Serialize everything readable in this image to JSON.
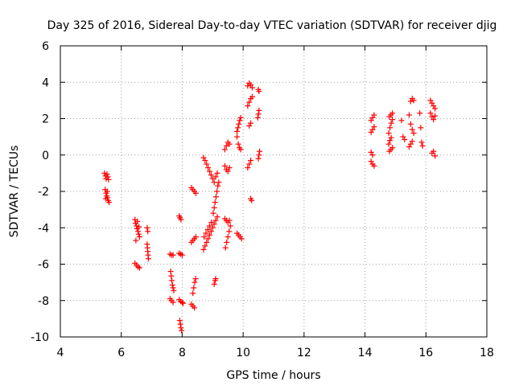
{
  "chart_data": {
    "type": "scatter",
    "title": "Day 325 of 2016, Sidereal Day-to-day VTEC variation (SDTVAR) for receiver djig",
    "xlabel": "GPS time / hours",
    "ylabel": "SDTVAR / TECUs",
    "xlim": [
      4,
      18
    ],
    "ylim": [
      -10,
      6
    ],
    "xticks": [
      "4",
      "6",
      "8",
      "10",
      "12",
      "14",
      "16",
      "18"
    ],
    "yticks": [
      "-10",
      "-8",
      "-6",
      "-4",
      "-2",
      "0",
      "2",
      "4",
      "6"
    ],
    "grid": true,
    "marker": "plus",
    "series": [
      {
        "name": "SDTVAR",
        "color": "#ff0000",
        "points": [
          [
            5.45,
            -1.0
          ],
          [
            5.48,
            -1.15
          ],
          [
            5.5,
            -1.3
          ],
          [
            5.53,
            -1.05
          ],
          [
            5.56,
            -1.2
          ],
          [
            5.58,
            -1.35
          ],
          [
            5.47,
            -1.9
          ],
          [
            5.5,
            -2.1
          ],
          [
            5.52,
            -2.25
          ],
          [
            5.55,
            -2.35
          ],
          [
            5.57,
            -2.5
          ],
          [
            5.6,
            -2.6
          ],
          [
            5.49,
            -2.4
          ],
          [
            5.54,
            -2.0
          ],
          [
            6.45,
            -3.55
          ],
          [
            6.47,
            -3.75
          ],
          [
            6.5,
            -3.9
          ],
          [
            6.52,
            -4.05
          ],
          [
            6.55,
            -4.2
          ],
          [
            6.57,
            -4.35
          ],
          [
            6.6,
            -4.5
          ],
          [
            6.48,
            -4.7
          ],
          [
            6.53,
            -3.65
          ],
          [
            6.58,
            -3.95
          ],
          [
            6.45,
            -5.95
          ],
          [
            6.5,
            -6.05
          ],
          [
            6.55,
            -6.15
          ],
          [
            6.6,
            -6.2
          ],
          [
            6.85,
            -4.0
          ],
          [
            6.87,
            -4.2
          ],
          [
            6.85,
            -4.9
          ],
          [
            6.86,
            -5.1
          ],
          [
            6.87,
            -5.3
          ],
          [
            6.88,
            -5.5
          ],
          [
            6.89,
            -5.7
          ],
          [
            7.6,
            -5.45
          ],
          [
            7.65,
            -5.5
          ],
          [
            7.7,
            -5.5
          ],
          [
            7.62,
            -6.4
          ],
          [
            7.64,
            -6.65
          ],
          [
            7.66,
            -6.9
          ],
          [
            7.68,
            -7.15
          ],
          [
            7.7,
            -7.3
          ],
          [
            7.72,
            -7.45
          ],
          [
            7.6,
            -7.9
          ],
          [
            7.65,
            -8.0
          ],
          [
            7.7,
            -8.1
          ],
          [
            7.9,
            -3.35
          ],
          [
            7.93,
            -3.45
          ],
          [
            7.96,
            -3.55
          ],
          [
            7.9,
            -5.4
          ],
          [
            7.95,
            -5.45
          ],
          [
            8.0,
            -5.5
          ],
          [
            7.9,
            -7.95
          ],
          [
            7.95,
            -8.05
          ],
          [
            8.0,
            -8.1
          ],
          [
            8.03,
            -8.15
          ],
          [
            7.92,
            -9.1
          ],
          [
            7.94,
            -9.3
          ],
          [
            7.96,
            -9.5
          ],
          [
            7.98,
            -9.65
          ],
          [
            8.3,
            -1.8
          ],
          [
            8.35,
            -1.9
          ],
          [
            8.4,
            -2.0
          ],
          [
            8.45,
            -2.1
          ],
          [
            8.3,
            -4.8
          ],
          [
            8.35,
            -4.7
          ],
          [
            8.4,
            -4.6
          ],
          [
            8.45,
            -4.5
          ],
          [
            8.3,
            -8.2
          ],
          [
            8.35,
            -8.3
          ],
          [
            8.4,
            -8.4
          ],
          [
            8.35,
            -7.6
          ],
          [
            8.38,
            -7.3
          ],
          [
            8.41,
            -7.0
          ],
          [
            8.44,
            -6.8
          ],
          [
            8.7,
            -0.15
          ],
          [
            8.75,
            -0.3
          ],
          [
            8.8,
            -0.5
          ],
          [
            8.85,
            -0.7
          ],
          [
            8.9,
            -0.9
          ],
          [
            8.95,
            -1.1
          ],
          [
            9.0,
            -1.3
          ],
          [
            9.05,
            -1.5
          ],
          [
            9.1,
            -1.2
          ],
          [
            9.15,
            -1.0
          ],
          [
            8.7,
            -5.2
          ],
          [
            8.75,
            -5.0
          ],
          [
            8.8,
            -4.8
          ],
          [
            8.85,
            -4.6
          ],
          [
            8.9,
            -4.4
          ],
          [
            8.95,
            -4.2
          ],
          [
            9.0,
            -4.0
          ],
          [
            9.05,
            -3.8
          ],
          [
            9.1,
            -3.6
          ],
          [
            9.15,
            -3.4
          ],
          [
            8.72,
            -4.5
          ],
          [
            8.78,
            -4.3
          ],
          [
            8.84,
            -4.1
          ],
          [
            8.9,
            -3.9
          ],
          [
            8.96,
            -3.7
          ],
          [
            9.02,
            -3.2
          ],
          [
            9.05,
            -2.9
          ],
          [
            9.08,
            -2.6
          ],
          [
            9.11,
            -2.3
          ],
          [
            9.14,
            -2.0
          ],
          [
            9.17,
            -1.7
          ],
          [
            9.2,
            -1.5
          ],
          [
            9.05,
            -7.1
          ],
          [
            9.08,
            -6.9
          ],
          [
            9.1,
            -6.8
          ],
          [
            9.4,
            0.3
          ],
          [
            9.45,
            0.5
          ],
          [
            9.5,
            0.7
          ],
          [
            9.55,
            0.6
          ],
          [
            9.4,
            -0.6
          ],
          [
            9.45,
            -0.8
          ],
          [
            9.5,
            -0.9
          ],
          [
            9.55,
            -0.7
          ],
          [
            9.4,
            -3.5
          ],
          [
            9.45,
            -3.6
          ],
          [
            9.5,
            -3.7
          ],
          [
            9.55,
            -3.6
          ],
          [
            9.42,
            -5.1
          ],
          [
            9.46,
            -4.8
          ],
          [
            9.5,
            -4.5
          ],
          [
            9.54,
            -4.2
          ],
          [
            9.58,
            -3.9
          ],
          [
            9.8,
            1.3
          ],
          [
            9.83,
            1.5
          ],
          [
            9.86,
            1.7
          ],
          [
            9.89,
            1.9
          ],
          [
            9.92,
            2.05
          ],
          [
            9.8,
            1.0
          ],
          [
            9.84,
            0.6
          ],
          [
            9.88,
            0.4
          ],
          [
            9.92,
            0.3
          ],
          [
            9.8,
            -4.3
          ],
          [
            9.85,
            -4.4
          ],
          [
            9.9,
            -4.5
          ],
          [
            9.95,
            -4.6
          ],
          [
            10.15,
            3.8
          ],
          [
            10.2,
            3.95
          ],
          [
            10.25,
            3.85
          ],
          [
            10.3,
            3.7
          ],
          [
            10.15,
            2.7
          ],
          [
            10.2,
            2.9
          ],
          [
            10.25,
            3.1
          ],
          [
            10.3,
            3.2
          ],
          [
            10.2,
            1.6
          ],
          [
            10.25,
            1.75
          ],
          [
            10.15,
            -0.7
          ],
          [
            10.2,
            -0.5
          ],
          [
            10.25,
            -0.3
          ],
          [
            10.25,
            -2.4
          ],
          [
            10.28,
            -2.5
          ],
          [
            10.5,
            3.6
          ],
          [
            10.52,
            3.5
          ],
          [
            10.48,
            2.05
          ],
          [
            10.5,
            2.25
          ],
          [
            10.52,
            2.45
          ],
          [
            10.5,
            -0.2
          ],
          [
            10.52,
            0.0
          ],
          [
            10.54,
            0.2
          ],
          [
            14.2,
            1.9
          ],
          [
            14.25,
            2.05
          ],
          [
            14.3,
            2.2
          ],
          [
            14.2,
            1.25
          ],
          [
            14.25,
            1.4
          ],
          [
            14.3,
            1.55
          ],
          [
            14.2,
            0.15
          ],
          [
            14.25,
            0.0
          ],
          [
            14.2,
            -0.35
          ],
          [
            14.25,
            -0.5
          ],
          [
            14.3,
            -0.6
          ],
          [
            14.8,
            2.1
          ],
          [
            14.85,
            2.2
          ],
          [
            14.9,
            2.3
          ],
          [
            14.78,
            1.2
          ],
          [
            14.82,
            1.5
          ],
          [
            14.86,
            1.75
          ],
          [
            14.9,
            1.95
          ],
          [
            14.78,
            0.6
          ],
          [
            14.82,
            0.8
          ],
          [
            14.86,
            0.95
          ],
          [
            14.8,
            0.2
          ],
          [
            14.85,
            0.3
          ],
          [
            14.9,
            0.4
          ],
          [
            15.2,
            1.9
          ],
          [
            15.25,
            1.0
          ],
          [
            15.3,
            0.85
          ],
          [
            15.5,
            2.95
          ],
          [
            15.55,
            3.1
          ],
          [
            15.6,
            3.0
          ],
          [
            15.45,
            2.2
          ],
          [
            15.5,
            1.7
          ],
          [
            15.55,
            1.4
          ],
          [
            15.6,
            1.2
          ],
          [
            15.45,
            0.45
          ],
          [
            15.5,
            0.6
          ],
          [
            15.55,
            0.75
          ],
          [
            15.8,
            2.3
          ],
          [
            15.83,
            1.5
          ],
          [
            15.86,
            0.7
          ],
          [
            15.89,
            0.5
          ],
          [
            16.15,
            3.0
          ],
          [
            16.2,
            2.85
          ],
          [
            16.25,
            2.7
          ],
          [
            16.3,
            2.55
          ],
          [
            16.15,
            2.3
          ],
          [
            16.2,
            2.1
          ],
          [
            16.25,
            1.95
          ],
          [
            16.3,
            2.15
          ],
          [
            16.2,
            0.1
          ],
          [
            16.25,
            0.2
          ],
          [
            16.3,
            -0.05
          ]
        ]
      }
    ]
  }
}
